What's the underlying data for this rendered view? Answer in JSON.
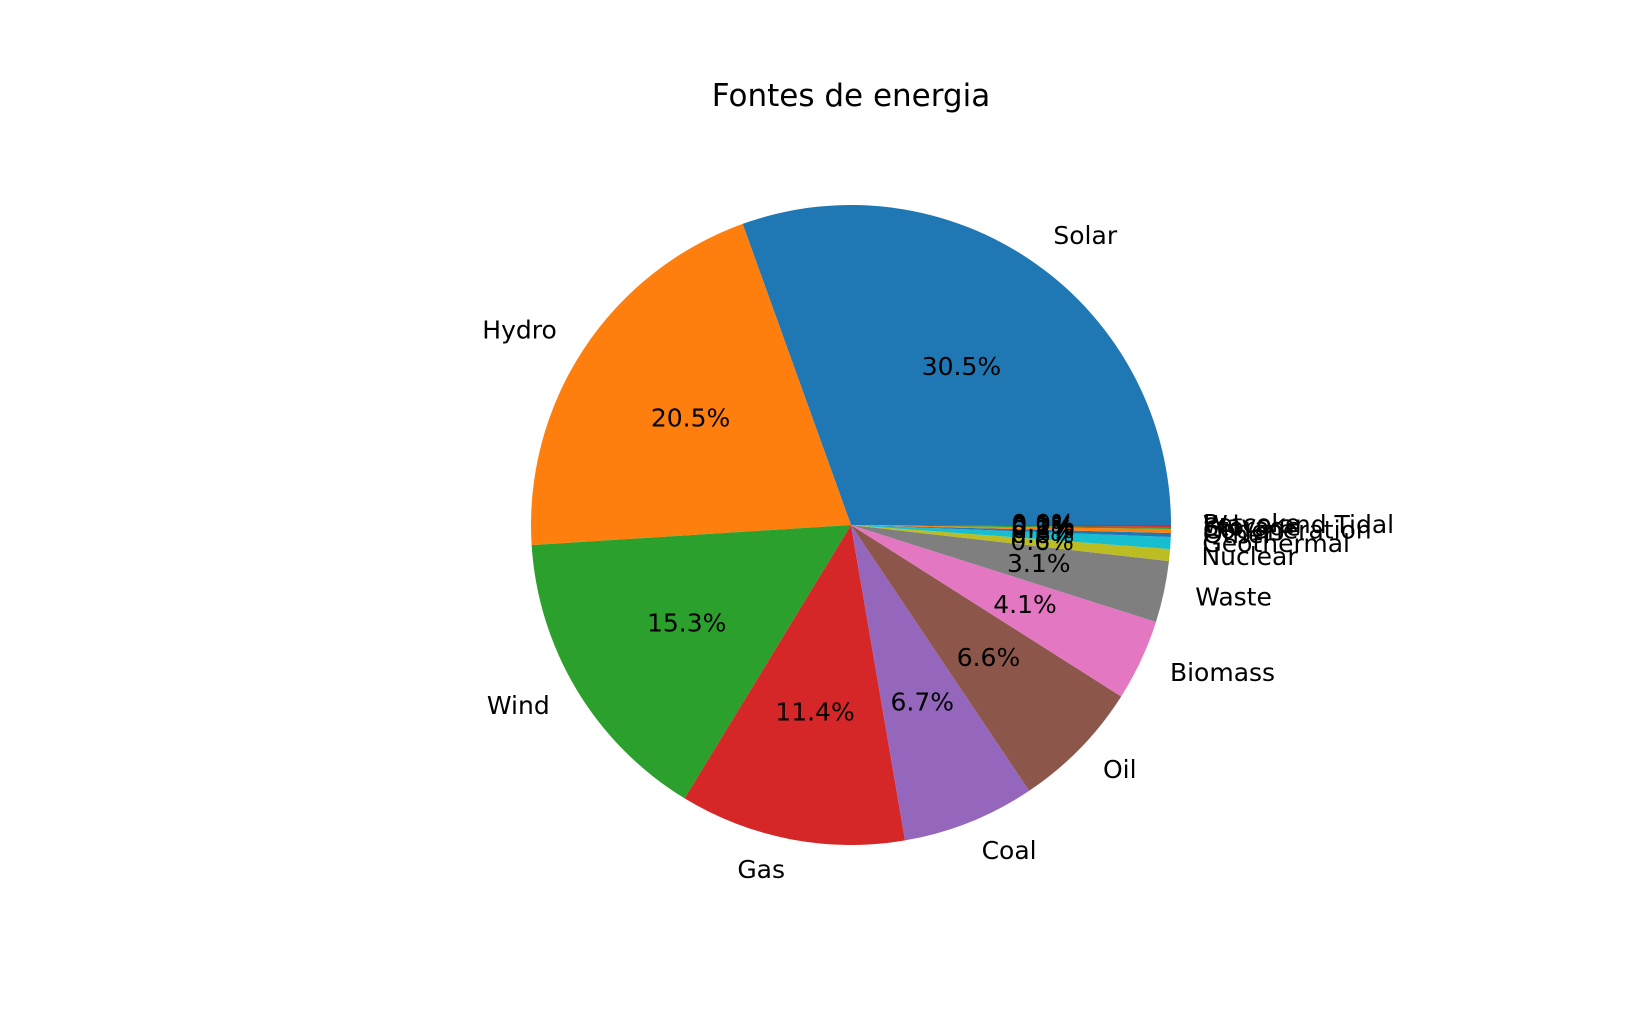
{
  "chart_data": {
    "type": "pie",
    "title": "Fontes de energia",
    "start_angle_deg": 0,
    "counterclockwise": true,
    "slices": [
      {
        "label": "Solar",
        "value": 30.5,
        "pct_label": "30.5%",
        "color": "#1f77b4"
      },
      {
        "label": "Hydro",
        "value": 20.5,
        "pct_label": "20.5%",
        "color": "#ff7f0e"
      },
      {
        "label": "Wind",
        "value": 15.3,
        "pct_label": "15.3%",
        "color": "#2ca02c"
      },
      {
        "label": "Gas",
        "value": 11.4,
        "pct_label": "11.4%",
        "color": "#d62728"
      },
      {
        "label": "Coal",
        "value": 6.7,
        "pct_label": "6.7%",
        "color": "#9467bd"
      },
      {
        "label": "Oil",
        "value": 6.6,
        "pct_label": "6.6%",
        "color": "#8c564b"
      },
      {
        "label": "Biomass",
        "value": 4.1,
        "pct_label": "4.1%",
        "color": "#e377c2"
      },
      {
        "label": "Waste",
        "value": 3.1,
        "pct_label": "3.1%",
        "color": "#7f7f7f"
      },
      {
        "label": "Nuclear",
        "value": 0.6,
        "pct_label": "0.6%",
        "color": "#bcbd22"
      },
      {
        "label": "Geothermal",
        "value": 0.6,
        "pct_label": "0.6%",
        "color": "#17becf"
      },
      {
        "label": "Other",
        "value": 0.2,
        "pct_label": "0.2%",
        "color": "#1f77b4"
      },
      {
        "label": "Cogeneration",
        "value": 0.2,
        "pct_label": "0.2%",
        "color": "#ff7f0e"
      },
      {
        "label": "Storage",
        "value": 0.1,
        "pct_label": "0.1%",
        "color": "#2ca02c"
      },
      {
        "label": "Wave and Tidal",
        "value": 0.1,
        "pct_label": "0.1%",
        "color": "#d62728"
      },
      {
        "label": "Petcoke",
        "value": 0.0,
        "pct_label": "0.0%",
        "color": "#9467bd"
      }
    ]
  }
}
